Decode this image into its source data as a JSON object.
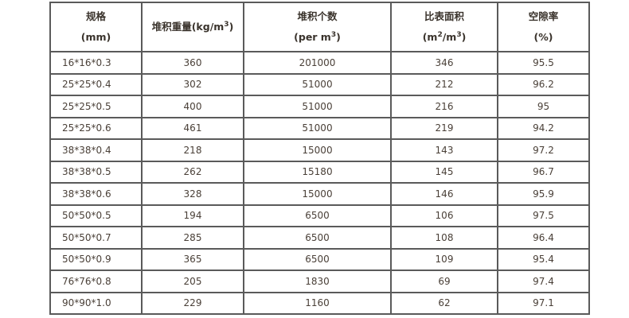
{
  "headers": [
    {
      "line1": "规格",
      "line2": "(mm)"
    },
    {
      "line1": "堆积重量(kg/m",
      "sup": "3",
      "tail": ")"
    },
    {
      "line1": "堆积个数",
      "line2": "(per m",
      "sup2": "3",
      "tail2": ")"
    },
    {
      "line1": "比表面积",
      "line2a": "(m",
      "supa": "2",
      "line2b": "/m",
      "supb": "3",
      "tail2": ")"
    },
    {
      "line1": "空隙率",
      "line2": "(%)"
    }
  ],
  "rows": [
    [
      "16*16*0.3",
      "360",
      "201000",
      "346",
      "95.5"
    ],
    [
      "25*25*0.4",
      "302",
      "51000",
      "212",
      "96.2"
    ],
    [
      "25*25*0.5",
      "400",
      "51000",
      "216",
      "95"
    ],
    [
      "25*25*0.6",
      "461",
      "51000",
      "219",
      "94.2"
    ],
    [
      "38*38*0.4",
      "218",
      "15000",
      "143",
      "97.2"
    ],
    [
      "38*38*0.5",
      "262",
      "15180",
      "145",
      "96.7"
    ],
    [
      "38*38*0.6",
      "328",
      "15000",
      "146",
      "95.9"
    ],
    [
      "50*50*0.5",
      "194",
      "6500",
      "106",
      "97.5"
    ],
    [
      "50*50*0.7",
      "285",
      "6500",
      "108",
      "96.4"
    ],
    [
      "50*50*0.9",
      "365",
      "6500",
      "109",
      "95.4"
    ],
    [
      "76*76*0.8",
      "205",
      "1830",
      "69",
      "97.4"
    ],
    [
      "90*90*1.0",
      "229",
      "1160",
      "62",
      "97.1"
    ]
  ]
}
